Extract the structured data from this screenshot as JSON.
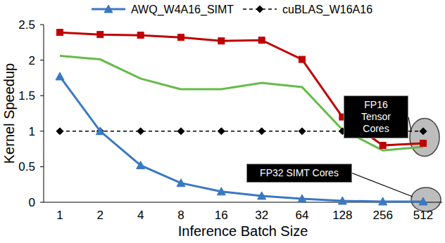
{
  "chart_data": {
    "type": "line",
    "x_label": "Inference Batch Size",
    "y_label": "Kernel Speedup",
    "categories": [
      "1",
      "2",
      "4",
      "8",
      "16",
      "32",
      "64",
      "128",
      "256",
      "512"
    ],
    "ylim": [
      0,
      2.5
    ],
    "yticks": [
      0,
      0.5,
      1,
      1.5,
      2,
      2.5
    ],
    "grid": false,
    "legend": "top",
    "series": [
      {
        "name": "AWQ_W4A16_SIMT",
        "color": "#3a78c2",
        "marker": "triangle",
        "line_style": "solid",
        "values": [
          1.77,
          1.0,
          0.52,
          0.27,
          0.15,
          0.09,
          0.05,
          0.02,
          0.01,
          0.01
        ]
      },
      {
        "name": "cuBLAS_W16A16",
        "color": "#000000",
        "marker": "diamond",
        "line_style": "dashed",
        "values": [
          1.0,
          1.0,
          1.0,
          1.0,
          1.0,
          1.0,
          1.0,
          1.0,
          1.0,
          1.0
        ]
      },
      {
        "color": "#c00000",
        "marker": "square",
        "line_style": "solid",
        "values": [
          2.39,
          2.36,
          2.35,
          2.32,
          2.27,
          2.28,
          2.01,
          1.2,
          0.8,
          0.83
        ]
      },
      {
        "color": "#66bb48",
        "marker": "none",
        "line_style": "solid",
        "values": [
          2.06,
          2.01,
          1.74,
          1.59,
          1.59,
          1.68,
          1.62,
          1.02,
          0.73,
          0.78
        ]
      }
    ],
    "annotations": [
      {
        "text": "FP16 Tensor Cores"
      },
      {
        "text": "FP32 SIMT Cores"
      }
    ]
  }
}
